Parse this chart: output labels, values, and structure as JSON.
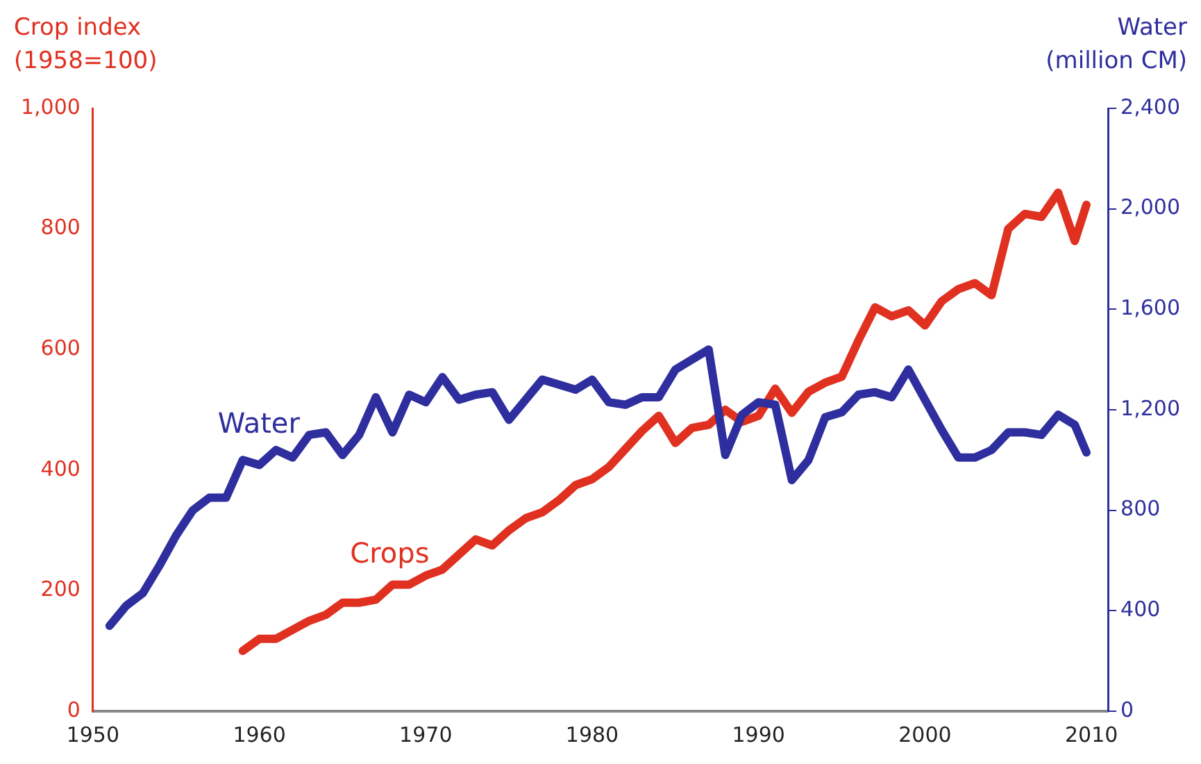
{
  "chart_data": {
    "type": "line",
    "ylabel": "Crop index\n(1958=100)",
    "y2label": "Water\n(million CM)",
    "xlim": [
      1950,
      2011
    ],
    "xticks": [
      1950,
      1960,
      1970,
      1980,
      1990,
      2000,
      2010
    ],
    "ylim": [
      0,
      1000
    ],
    "yticks": [
      0,
      200,
      400,
      600,
      800,
      {
        "value": 1000,
        "label": "1,000"
      }
    ],
    "y2lim": [
      0,
      2400
    ],
    "y2ticks": [
      0,
      400,
      800,
      {
        "value": 1200,
        "label": "1,200"
      },
      {
        "value": 1600,
        "label": "1,600"
      },
      {
        "value": 2000,
        "label": "2,000"
      },
      {
        "value": 2400,
        "label": "2,400"
      }
    ],
    "grid": false,
    "legend": false,
    "marker": "none",
    "line_style": "solid",
    "series": [
      {
        "name": "Water",
        "color": "#2e2e9e",
        "axis": "y2",
        "x": [
          1951,
          1952,
          1953,
          1954,
          1955,
          1956,
          1957,
          1958,
          1959,
          1960,
          1961,
          1962,
          1963,
          1964,
          1965,
          1966,
          1967,
          1968,
          1969,
          1970,
          1971,
          1972,
          1973,
          1974,
          1975,
          1976,
          1977,
          1978,
          1979,
          1980,
          1981,
          1982,
          1983,
          1984,
          1985,
          1986,
          1987,
          1988,
          1989,
          1990,
          1991,
          1992,
          1993,
          1994,
          1995,
          1996,
          1997,
          1998,
          1999,
          2000,
          2001,
          2002,
          2003,
          2004,
          2005,
          2006,
          2007,
          2008,
          2009,
          2009.7
        ],
        "values": [
          340,
          420,
          470,
          580,
          700,
          800,
          850,
          850,
          1000,
          980,
          1040,
          1010,
          1100,
          1110,
          1020,
          1100,
          1250,
          1110,
          1260,
          1230,
          1330,
          1240,
          1260,
          1270,
          1160,
          1240,
          1320,
          1300,
          1280,
          1320,
          1230,
          1220,
          1250,
          1250,
          1360,
          1400,
          1440,
          1020,
          1180,
          1230,
          1220,
          920,
          1000,
          1170,
          1190,
          1260,
          1270,
          1250,
          1360,
          1240,
          1120,
          1010,
          1010,
          1040,
          1110,
          1110,
          1100,
          1180,
          1140,
          1030
        ]
      },
      {
        "name": "Crops",
        "color": "#e03020",
        "axis": "y",
        "x": [
          1959,
          1960,
          1961,
          1962,
          1963,
          1964,
          1965,
          1966,
          1967,
          1968,
          1969,
          1970,
          1971,
          1972,
          1973,
          1974,
          1975,
          1976,
          1977,
          1978,
          1979,
          1980,
          1981,
          1982,
          1983,
          1984,
          1985,
          1986,
          1987,
          1988,
          1989,
          1990,
          1991,
          1992,
          1993,
          1994,
          1995,
          1996,
          1997,
          1998,
          1999,
          2000,
          2001,
          2002,
          2003,
          2004,
          2005,
          2006,
          2007,
          2008,
          2009,
          2009.7
        ],
        "values": [
          100,
          120,
          120,
          135,
          150,
          160,
          180,
          180,
          185,
          210,
          210,
          225,
          235,
          260,
          285,
          275,
          300,
          320,
          330,
          350,
          375,
          385,
          405,
          435,
          465,
          490,
          445,
          470,
          475,
          500,
          480,
          490,
          535,
          495,
          530,
          545,
          555,
          615,
          670,
          655,
          665,
          640,
          680,
          700,
          710,
          690,
          800,
          825,
          820,
          860,
          780,
          840
        ]
      }
    ]
  }
}
